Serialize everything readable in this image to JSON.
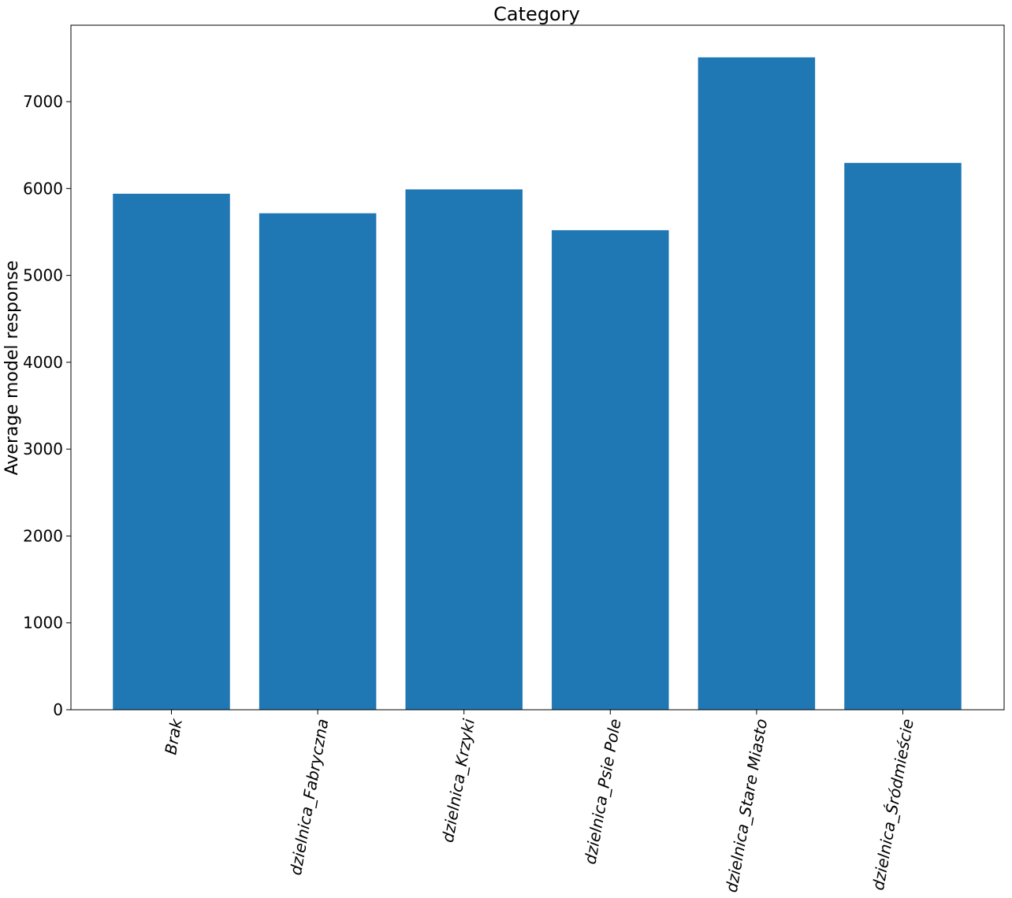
{
  "chart_data": {
    "type": "bar",
    "title": "Category",
    "xlabel": "",
    "ylabel": "Average model response",
    "categories": [
      "Brak",
      "dzielnica_Fabryczna",
      "dzielnica_Krzyki",
      "dzielnica_Psie Pole",
      "dzielnica_Stare Miasto",
      "dzielnica_Śródmieście"
    ],
    "values": [
      5940,
      5715,
      5990,
      5520,
      7510,
      6295
    ],
    "ylim": [
      0,
      7880
    ],
    "yticks": [
      0,
      1000,
      2000,
      3000,
      4000,
      5000,
      6000,
      7000
    ],
    "bar_color": "#1f77b4",
    "grid": false,
    "legend": "none"
  }
}
